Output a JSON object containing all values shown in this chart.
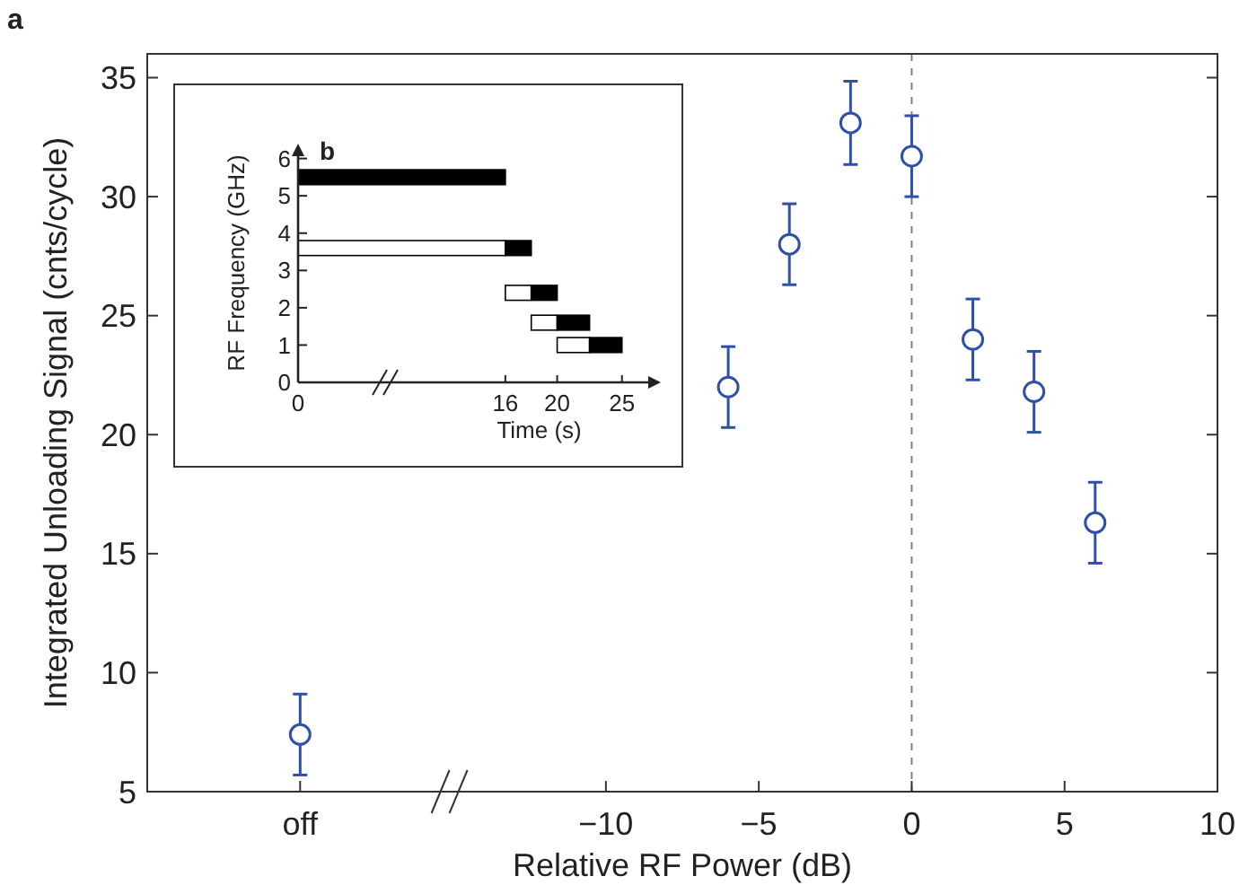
{
  "chart_data": [
    {
      "type": "scatter",
      "title": "a",
      "xlabel": "Relative RF Power (dB)",
      "ylabel": "Integrated Unloading Signal (cnts/cycle)",
      "x": [
        -20,
        -6,
        -4,
        -2,
        0,
        2,
        4,
        6
      ],
      "series": [
        {
          "color": "#3050a8",
          "values": [
            7.4,
            22.0,
            28.0,
            33.1,
            31.7,
            24.0,
            21.8,
            16.3
          ],
          "errors": [
            1.7,
            1.7,
            1.7,
            1.75,
            1.7,
            1.7,
            1.7,
            1.7
          ]
        }
      ],
      "xlim": [
        -25,
        10
      ],
      "xticks": [
        {
          "value": -20,
          "label": "off"
        },
        -10,
        -5,
        0,
        5,
        10
      ],
      "ylim": [
        5,
        36
      ],
      "yticks": [
        5,
        10,
        15,
        20,
        25,
        30,
        35
      ],
      "ref_lines": [
        {
          "axis": "x",
          "value": 0,
          "color": "#808080",
          "line_style": "dashed"
        }
      ],
      "marker": "circle",
      "grid": false
    },
    {
      "type": "bar",
      "title": "b",
      "xlabel": "Time (s)",
      "ylabel": "RF Frequency (GHz)",
      "orientation": "horizontal",
      "x": [
        5.5,
        3.6,
        2.4,
        1.6,
        1.0
      ],
      "series": [
        {
          "color": "#ffffff",
          "values": [
            null,
            16,
            2,
            2,
            2.5
          ],
          "base": [
            null,
            0,
            16,
            18,
            20
          ]
        },
        {
          "color": "#000000",
          "values": [
            16,
            2,
            2,
            2.5,
            2.5
          ],
          "base": [
            0,
            16,
            18,
            20,
            22.5
          ]
        }
      ],
      "xlim": [
        0,
        28
      ],
      "xticks": [
        0,
        16,
        20,
        25
      ],
      "ylim": [
        0,
        6.4
      ],
      "yticks": [
        0,
        1,
        2,
        3,
        4,
        5,
        6
      ],
      "grid": false
    }
  ]
}
